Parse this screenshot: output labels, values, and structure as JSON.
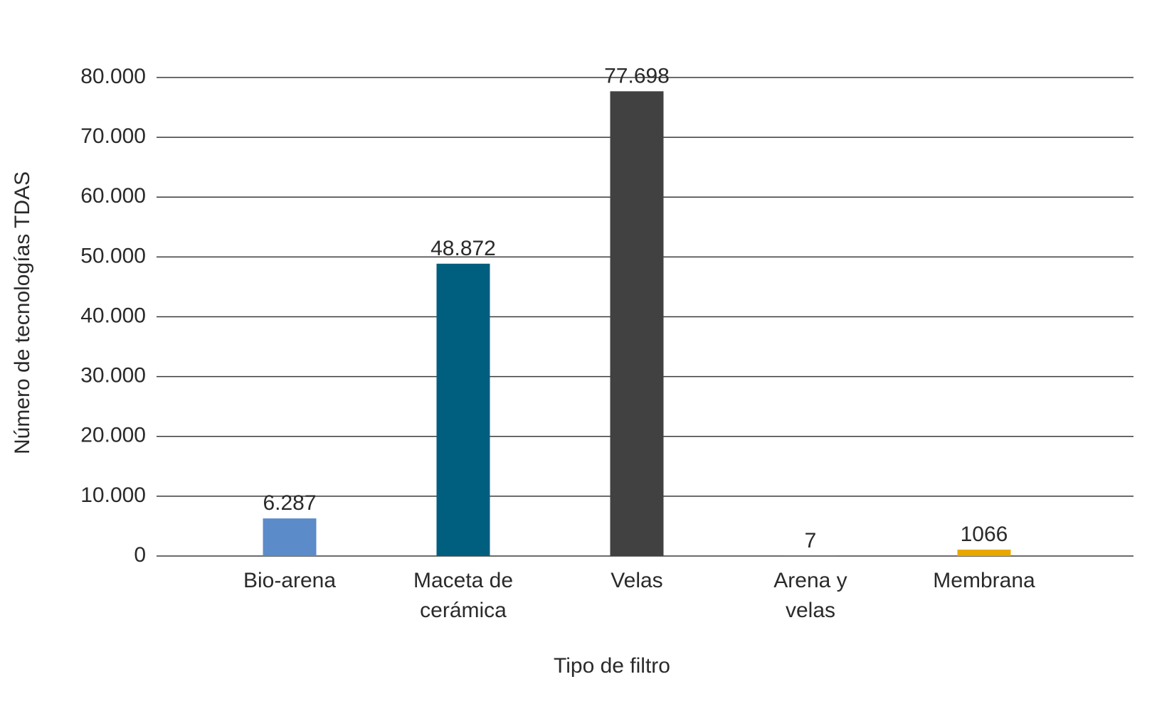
{
  "chart_data": {
    "type": "bar",
    "x_label": "Tipo de filtro",
    "y_label": "Número de tecnologías TDAS",
    "categories": [
      "Bio-arena",
      "Maceta de cerámica",
      "Velas",
      "Arena y velas",
      "Membrana"
    ],
    "values": [
      6287,
      48872,
      77698,
      7,
      1066
    ],
    "value_labels": [
      "6.287",
      "48.872",
      "77.698",
      "7",
      "1066"
    ],
    "colors": [
      "#5b8bc9",
      "#005f7f",
      "#414141",
      "#7fa7c9",
      "#e8a800"
    ],
    "ylim": [
      0,
      80000
    ],
    "yticks": [
      0,
      {
        "value": 10000,
        "label": "10.000"
      },
      {
        "value": 20000,
        "label": "20.000"
      },
      {
        "value": 30000,
        "label": "30.000"
      },
      {
        "value": 40000,
        "label": "40.000"
      },
      {
        "value": 50000,
        "label": "50.000"
      },
      {
        "value": 60000,
        "label": "60.000"
      },
      {
        "value": 70000,
        "label": "70.000"
      },
      {
        "value": 80000,
        "label": "80.000"
      }
    ],
    "grid": true
  }
}
